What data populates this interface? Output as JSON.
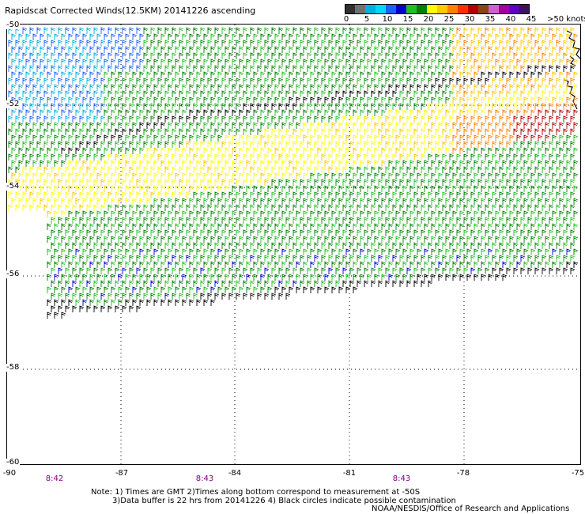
{
  "title": "Rapidscat Corrected Winds(12.5KM) 20141226 ascending",
  "scale": {
    "colors": [
      "#303030",
      "#707070",
      "#00b0e0",
      "#00d8ff",
      "#1a60ff",
      "#0000c8",
      "#20c020",
      "#008000",
      "#ffff00",
      "#ffc800",
      "#ff8000",
      "#ff3000",
      "#b00000",
      "#8b4513",
      "#d060d0",
      "#a000a0",
      "#6000c0",
      "#401060"
    ],
    "labels": [
      "0",
      "5",
      "10",
      "15",
      "20",
      "25",
      "30",
      "35",
      "40",
      "45",
      ">50 knots"
    ]
  },
  "lat_labels": [
    "-50",
    "-52",
    "-54",
    "-56",
    "-58",
    "-60"
  ],
  "lon_labels": [
    "-90",
    "-87",
    "-84",
    "-81",
    "-78",
    "-75"
  ],
  "time_labels": [
    "8:42",
    "8:43",
    "8:43"
  ],
  "note_lines": [
    "Note: 1) Times are GMT 2)Times along bottom correspond to measurement at -50S",
    "3)Data buffer is 22 hrs from 20141226 4) Black circles indicate possible contamination"
  ],
  "credit": "NOAA/NESDIS/Office of Research and Applications"
}
